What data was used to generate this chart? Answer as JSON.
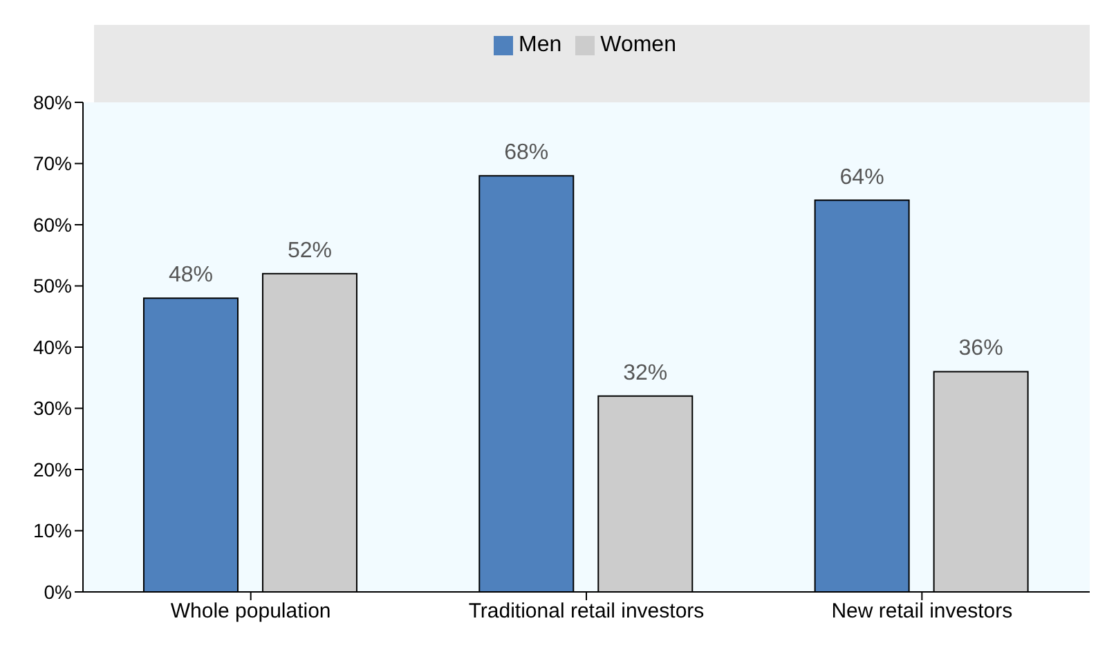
{
  "chart_data": {
    "type": "bar",
    "categories": [
      "Whole population",
      "Traditional retail investors",
      "New retail investors"
    ],
    "series": [
      {
        "name": "Men",
        "color": "#4f81bd",
        "values": [
          48,
          68,
          64
        ],
        "value_labels": [
          "48%",
          "68%",
          "64%"
        ]
      },
      {
        "name": "Women",
        "color": "#cccccc",
        "values": [
          52,
          32,
          36
        ],
        "value_labels": [
          "52%",
          "32%",
          "36%"
        ]
      }
    ],
    "ylim": [
      0,
      80
    ],
    "yticks": [
      {
        "value": 0,
        "label": "0%"
      },
      {
        "value": 10,
        "label": "10%"
      },
      {
        "value": 20,
        "label": "20%"
      },
      {
        "value": 30,
        "label": "30%"
      },
      {
        "value": 40,
        "label": "40%"
      },
      {
        "value": 50,
        "label": "50%"
      },
      {
        "value": 60,
        "label": "60%"
      },
      {
        "value": 70,
        "label": "70%"
      },
      {
        "value": 80,
        "label": "80%"
      }
    ],
    "grid": false,
    "legend": "top"
  }
}
